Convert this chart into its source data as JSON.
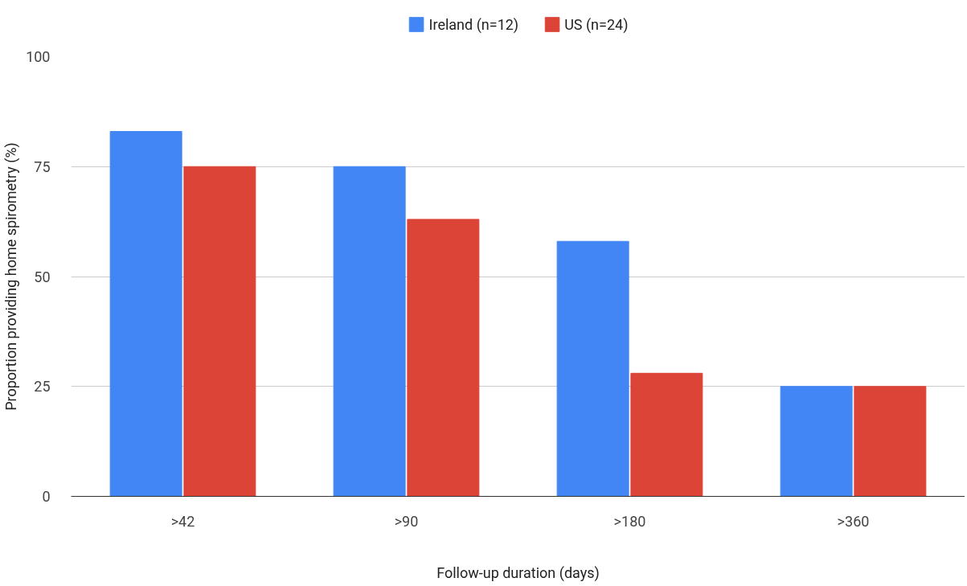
{
  "chart_data": {
    "type": "bar",
    "xlabel": "Follow-up duration (days)",
    "ylabel": "Proportion providing home spirometry (%)",
    "categories": [
      ">42",
      ">90",
      ">180",
      ">360"
    ],
    "series": [
      {
        "name": "Ireland (n=12)",
        "color": "#4285f4",
        "values": [
          83,
          75,
          58,
          25
        ]
      },
      {
        "name": "US (n=24)",
        "color": "#db4437",
        "values": [
          75,
          63,
          28,
          25
        ]
      }
    ],
    "ylim": [
      0,
      100
    ],
    "yticks": [
      0,
      25,
      50,
      75,
      100
    ],
    "grid": "y",
    "legend": "top"
  }
}
